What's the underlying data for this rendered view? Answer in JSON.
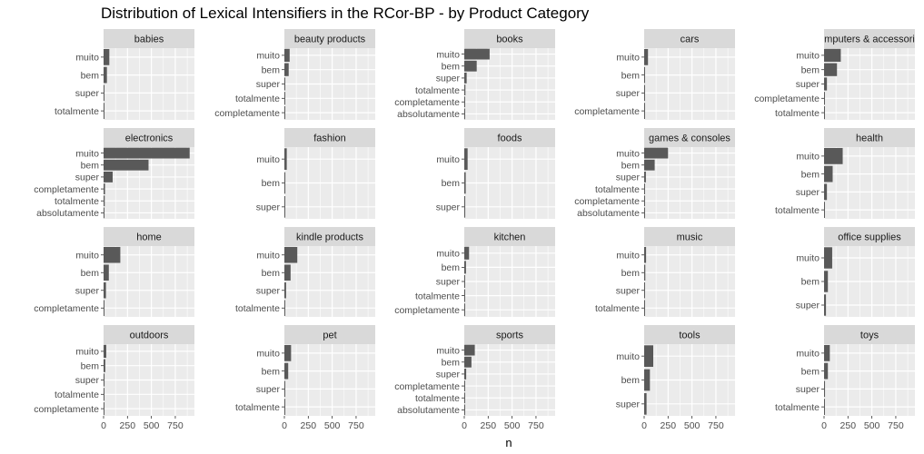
{
  "chart_data": {
    "type": "bar",
    "title": "Distribution of Lexical Intensifiers in the RCor-BP - by Product Category",
    "xlabel": "n",
    "ylabel": "",
    "xlim": [
      0,
      950
    ],
    "xticks": [
      0,
      250,
      500,
      750
    ],
    "orientation": "horizontal",
    "bar_color": "#595959",
    "panels": [
      {
        "name": "babies",
        "categories": [
          "muito",
          "bem",
          "super",
          "totalmente"
        ],
        "values": [
          60,
          35,
          8,
          3
        ]
      },
      {
        "name": "beauty products",
        "categories": [
          "muito",
          "bem",
          "super",
          "totalmente",
          "completamente"
        ],
        "values": [
          55,
          45,
          8,
          3,
          2
        ]
      },
      {
        "name": "books",
        "categories": [
          "muito",
          "bem",
          "super",
          "totalmente",
          "completamente",
          "absolutamente"
        ],
        "values": [
          265,
          130,
          25,
          12,
          8,
          4
        ]
      },
      {
        "name": "cars",
        "categories": [
          "muito",
          "bem",
          "super",
          "completamente"
        ],
        "values": [
          40,
          8,
          4,
          2
        ]
      },
      {
        "name": "computers & accessories",
        "categories": [
          "muito",
          "bem",
          "super",
          "completamente",
          "totalmente"
        ],
        "values": [
          175,
          135,
          30,
          3,
          2
        ]
      },
      {
        "name": "electronics",
        "categories": [
          "muito",
          "bem",
          "super",
          "completamente",
          "totalmente",
          "absolutamente"
        ],
        "values": [
          900,
          470,
          95,
          15,
          12,
          6
        ]
      },
      {
        "name": "fashion",
        "categories": [
          "muito",
          "bem",
          "super"
        ],
        "values": [
          25,
          10,
          5
        ]
      },
      {
        "name": "foods",
        "categories": [
          "muito",
          "bem",
          "super"
        ],
        "values": [
          35,
          15,
          10
        ]
      },
      {
        "name": "games & consoles",
        "categories": [
          "muito",
          "bem",
          "super",
          "totalmente",
          "completamente",
          "absolutamente"
        ],
        "values": [
          250,
          110,
          18,
          6,
          4,
          3
        ]
      },
      {
        "name": "health",
        "categories": [
          "muito",
          "bem",
          "super",
          "totalmente"
        ],
        "values": [
          195,
          90,
          30,
          3
        ]
      },
      {
        "name": "home",
        "categories": [
          "muito",
          "bem",
          "super",
          "completamente"
        ],
        "values": [
          175,
          55,
          25,
          3
        ]
      },
      {
        "name": "kindle products",
        "categories": [
          "muito",
          "bem",
          "super",
          "totalmente"
        ],
        "values": [
          135,
          65,
          18,
          6
        ]
      },
      {
        "name": "kitchen",
        "categories": [
          "muito",
          "bem",
          "super",
          "totalmente",
          "completamente"
        ],
        "values": [
          50,
          18,
          8,
          3,
          2
        ]
      },
      {
        "name": "music",
        "categories": [
          "muito",
          "bem",
          "super",
          "totalmente"
        ],
        "values": [
          20,
          12,
          8,
          6
        ]
      },
      {
        "name": "office supplies",
        "categories": [
          "muito",
          "bem",
          "super"
        ],
        "values": [
          85,
          40,
          20
        ]
      },
      {
        "name": "outdoors",
        "categories": [
          "muito",
          "bem",
          "super",
          "totalmente",
          "completamente"
        ],
        "values": [
          28,
          18,
          10,
          4,
          3
        ]
      },
      {
        "name": "pet",
        "categories": [
          "muito",
          "bem",
          "super",
          "totalmente"
        ],
        "values": [
          70,
          40,
          8,
          3
        ]
      },
      {
        "name": "sports",
        "categories": [
          "muito",
          "bem",
          "super",
          "completamente",
          "totalmente",
          "absolutamente"
        ],
        "values": [
          110,
          75,
          20,
          6,
          5,
          3
        ]
      },
      {
        "name": "tools",
        "categories": [
          "muito",
          "bem",
          "super"
        ],
        "values": [
          95,
          60,
          25
        ]
      },
      {
        "name": "toys",
        "categories": [
          "muito",
          "bem",
          "super",
          "totalmente"
        ],
        "values": [
          60,
          40,
          10,
          4
        ]
      }
    ]
  }
}
